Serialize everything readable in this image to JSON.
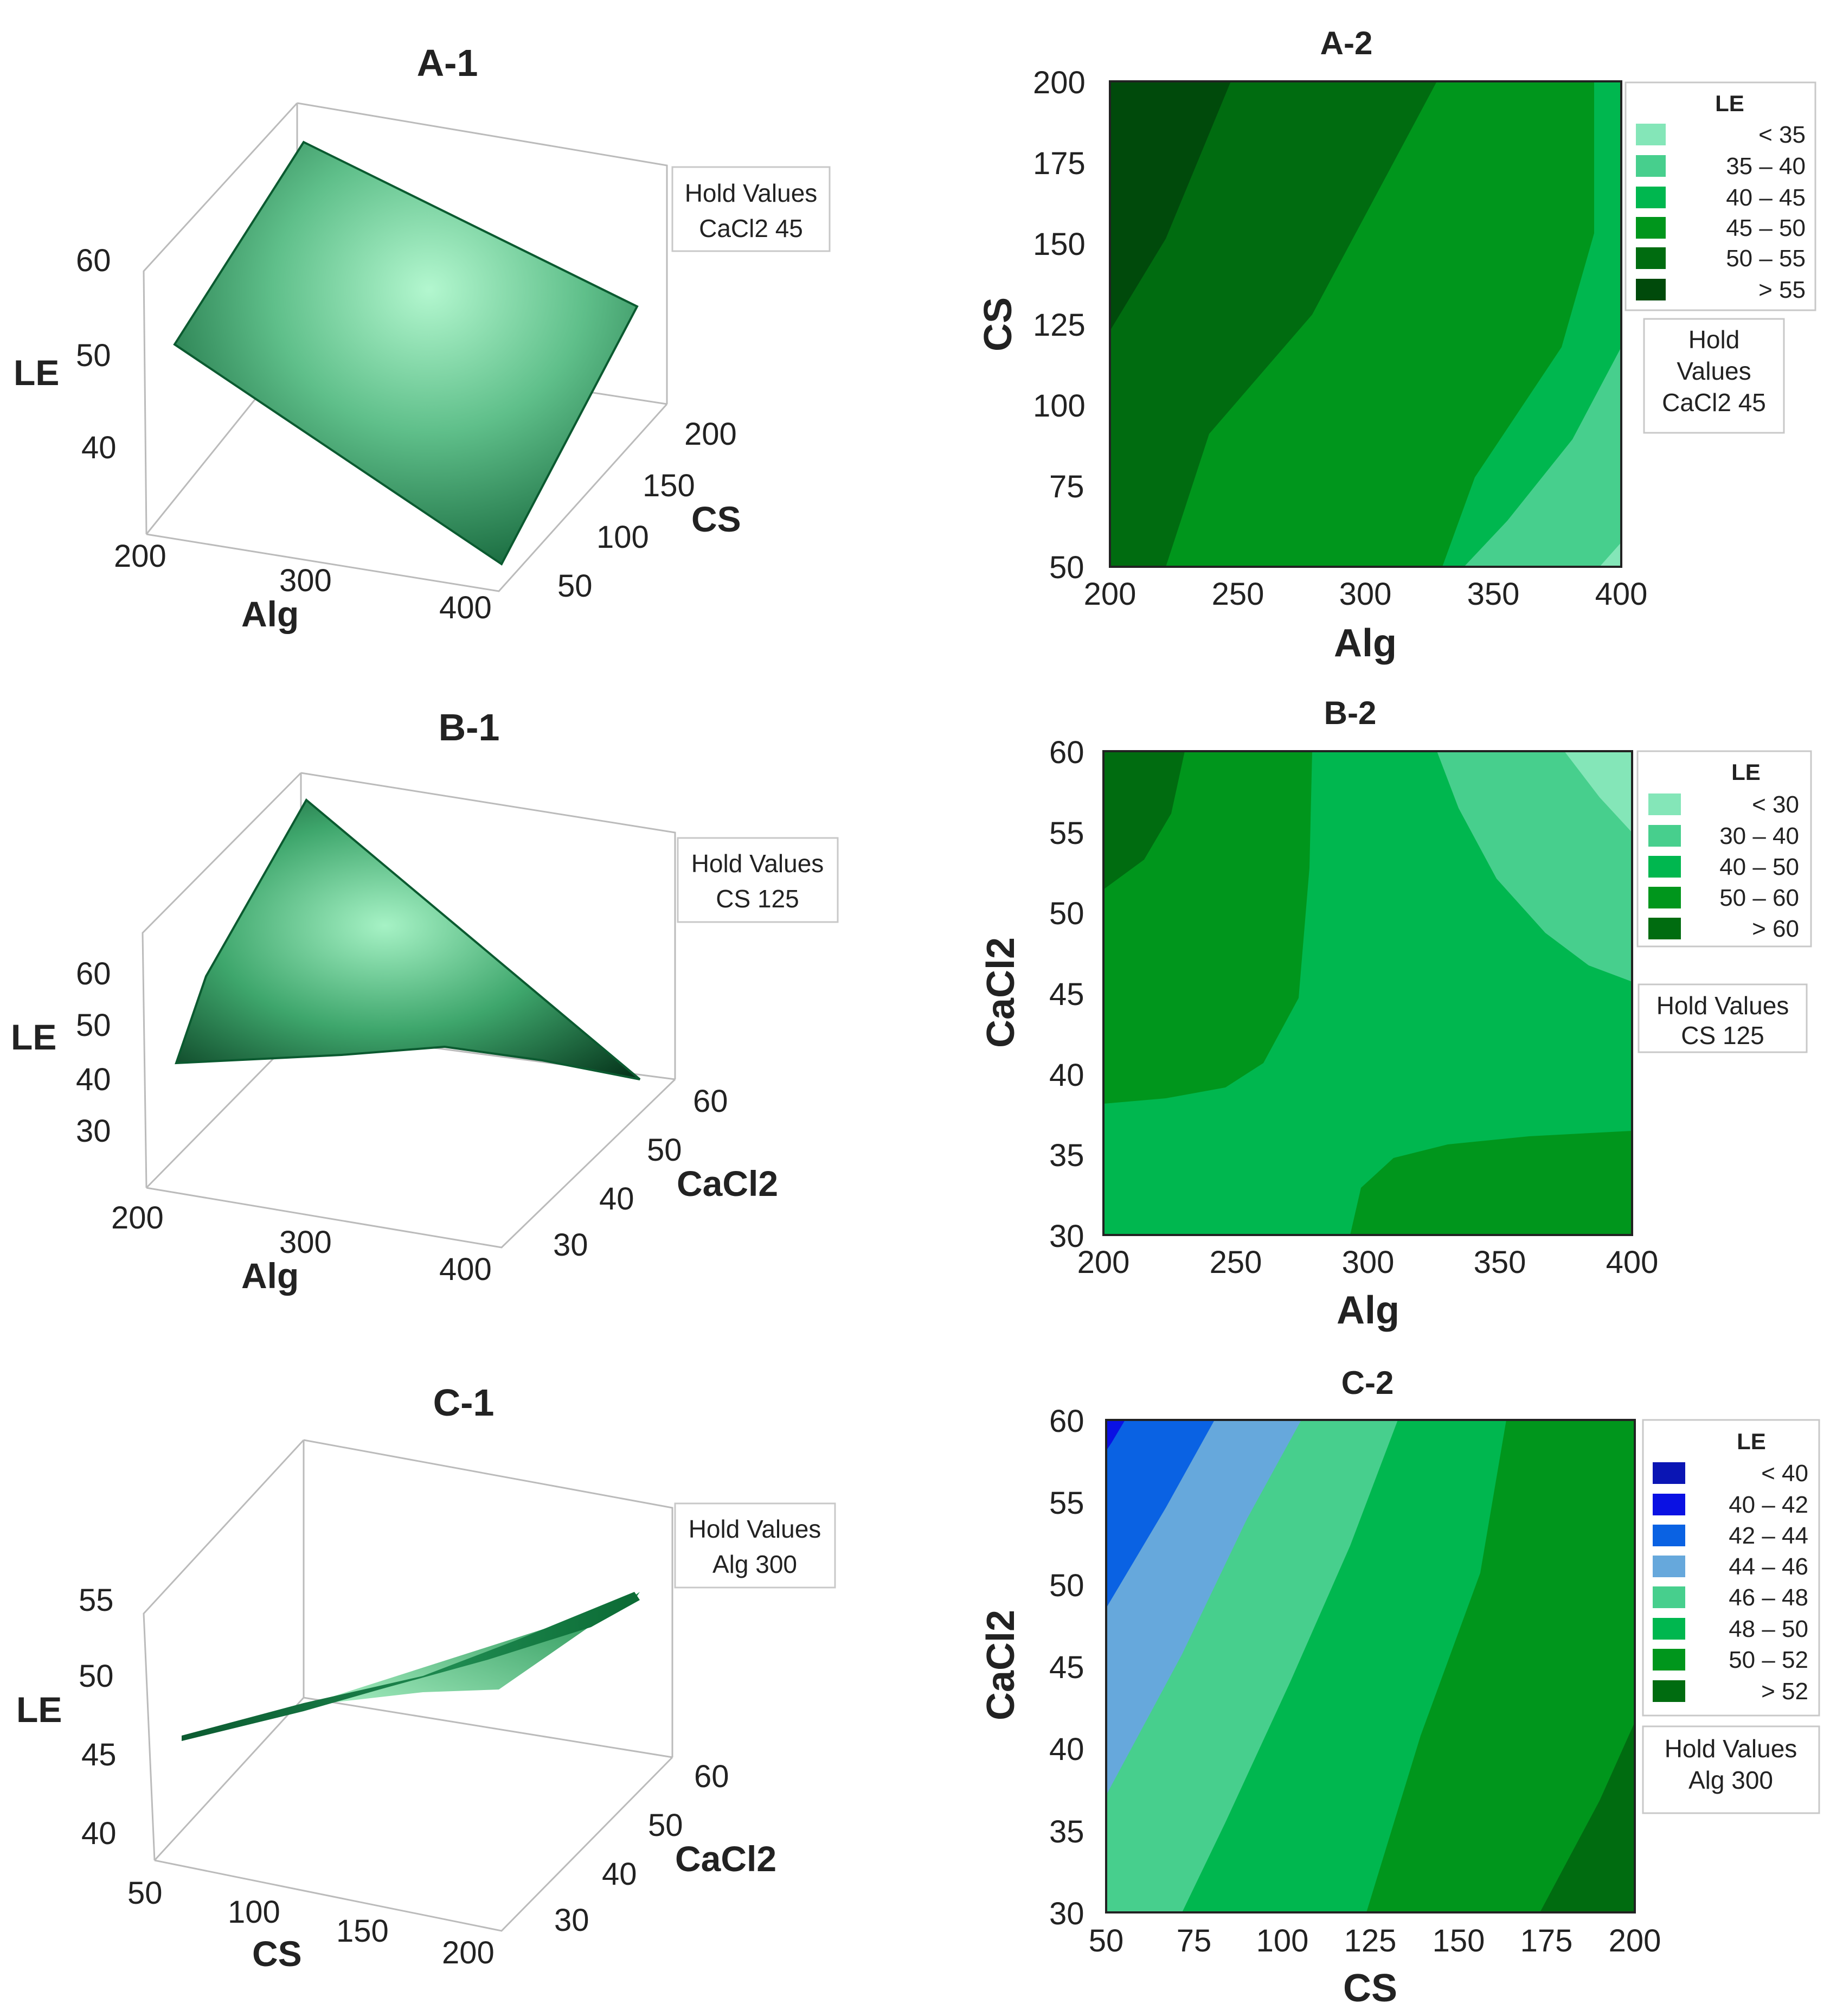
{
  "chart_data": [
    {
      "id": "A-1",
      "type": "surface",
      "title": "A-1",
      "xlabel": "Alg",
      "ylabel": "CS",
      "zlabel": "LE",
      "x_ticks": [
        "200",
        "300",
        "400"
      ],
      "y_ticks": [
        "50",
        "100",
        "150",
        "200"
      ],
      "z_ticks": [
        "40",
        "50",
        "60"
      ],
      "xlim": [
        200,
        400
      ],
      "ylim": [
        50,
        200
      ],
      "corners_LE": {
        "Alg200_CS50": 53,
        "Alg200_CS200": 62,
        "Alg400_CS50": 36,
        "Alg400_CS200": 48
      },
      "hold": {
        "title": "Hold Values",
        "value": "CaCl2  45"
      },
      "colors": {
        "surface_dark": "#0b5a30",
        "surface_light": "#b3f7cf"
      }
    },
    {
      "id": "A-2",
      "type": "contour",
      "title": "A-2",
      "xlabel": "Alg",
      "ylabel": "CS",
      "xlim": [
        200,
        400
      ],
      "ylim": [
        50,
        200
      ],
      "x_ticks": [
        "200",
        "250",
        "300",
        "350",
        "400"
      ],
      "y_ticks": [
        "50",
        "75",
        "100",
        "125",
        "150",
        "175",
        "200"
      ],
      "legend_title": "LE",
      "legend": [
        {
          "range": "<  35",
          "color": "#84e6b8"
        },
        {
          "range": "35  –  40",
          "color": "#47cf8d"
        },
        {
          "range": "40  –  45",
          "color": "#00b74f"
        },
        {
          "range": "45  –  50",
          "color": "#00961c"
        },
        {
          "range": "50  –  55",
          "color": "#006c10"
        },
        {
          "range": ">  55",
          "color": "#004a0b"
        }
      ],
      "hold": {
        "title": "Hold",
        "lines": [
          "Values",
          "CaCl2  45"
        ]
      }
    },
    {
      "id": "B-1",
      "type": "surface",
      "title": "B-1",
      "xlabel": "Alg",
      "ylabel": "CaCl2",
      "zlabel": "LE",
      "x_ticks": [
        "200",
        "300",
        "400"
      ],
      "y_ticks": [
        "30",
        "40",
        "50",
        "60"
      ],
      "z_ticks": [
        "30",
        "40",
        "50",
        "60"
      ],
      "xlim": [
        200,
        400
      ],
      "ylim": [
        30,
        60
      ],
      "hold": {
        "title": "Hold Values",
        "value": "CS  125"
      },
      "colors": {
        "surface_dark": "#0b5a30",
        "surface_light": "#a6f2c5"
      }
    },
    {
      "id": "B-2",
      "type": "contour",
      "title": "B-2",
      "xlabel": "Alg",
      "ylabel": "CaCl2",
      "xlim": [
        200,
        400
      ],
      "ylim": [
        30,
        60
      ],
      "x_ticks": [
        "200",
        "250",
        "300",
        "350",
        "400"
      ],
      "y_ticks": [
        "30",
        "35",
        "40",
        "45",
        "50",
        "55",
        "60"
      ],
      "legend_title": "LE",
      "legend": [
        {
          "range": "<  30",
          "color": "#84e6b8"
        },
        {
          "range": "30  –  40",
          "color": "#47cf8d"
        },
        {
          "range": "40  –  50",
          "color": "#00b74f"
        },
        {
          "range": "50  –  60",
          "color": "#00961c"
        },
        {
          "range": ">  60",
          "color": "#006c10"
        }
      ],
      "hold": {
        "title": "Hold Values",
        "lines": [
          "CS  125"
        ]
      }
    },
    {
      "id": "C-1",
      "type": "surface",
      "title": "C-1",
      "xlabel": "CS",
      "ylabel": "CaCl2",
      "zlabel": "LE",
      "x_ticks": [
        "50",
        "100",
        "150",
        "200"
      ],
      "y_ticks": [
        "30",
        "40",
        "50",
        "60"
      ],
      "z_ticks": [
        "40",
        "45",
        "50",
        "55"
      ],
      "xlim": [
        50,
        200
      ],
      "ylim": [
        30,
        60
      ],
      "hold": {
        "title": "Hold Values",
        "value": "Alg  300"
      },
      "colors": {
        "surface_dark": "#0b6a34",
        "surface_light": "#a9f0c4"
      }
    },
    {
      "id": "C-2",
      "type": "contour",
      "title": "C-2",
      "xlabel": "CS",
      "ylabel": "CaCl2",
      "xlim": [
        50,
        200
      ],
      "ylim": [
        30,
        60
      ],
      "x_ticks": [
        "50",
        "75",
        "100",
        "125",
        "150",
        "175",
        "200"
      ],
      "y_ticks": [
        "30",
        "35",
        "40",
        "45",
        "50",
        "55",
        "60"
      ],
      "legend_title": "LE",
      "legend": [
        {
          "range": "<  40",
          "color": "#0a15b4"
        },
        {
          "range": "40  –  42",
          "color": "#0a11e3"
        },
        {
          "range": "42  –  44",
          "color": "#0a62e3"
        },
        {
          "range": "44  –  46",
          "color": "#66a8dc"
        },
        {
          "range": "46  –  48",
          "color": "#47cf8d"
        },
        {
          "range": "48  –  50",
          "color": "#00b74f"
        },
        {
          "range": "50  –  52",
          "color": "#00961c"
        },
        {
          "range": ">  52",
          "color": "#006c10"
        }
      ],
      "hold": {
        "title": "Hold Values",
        "lines": [
          "Alg  300"
        ]
      }
    }
  ]
}
